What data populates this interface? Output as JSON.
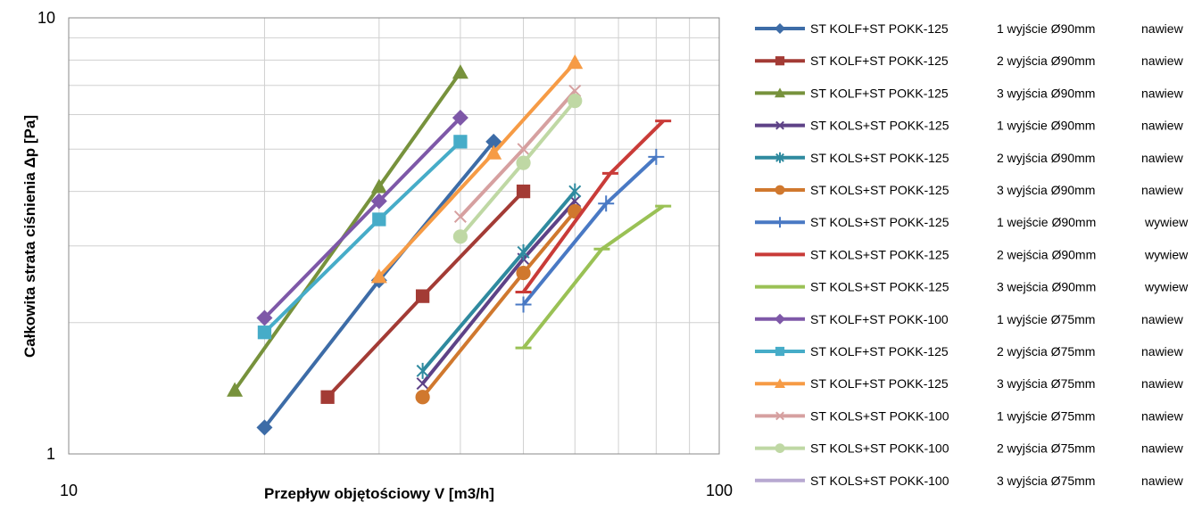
{
  "chart_data": {
    "type": "line",
    "title": "",
    "xlabel": "Przepływ objętościowy  V [m3/h]",
    "ylabel": "Całkowita strata ciśnienia  Δp [Pa]",
    "xscale": "log",
    "yscale": "log",
    "xlim": [
      10,
      100
    ],
    "ylim": [
      1,
      10
    ],
    "x_ticks": [
      "10",
      "100"
    ],
    "y_ticks": [
      "1",
      "10"
    ],
    "grid": true,
    "legend_position": "right",
    "series": [
      {
        "name": "ST KOLF+ST POKK-125",
        "outlet": "1 wyjście Ø90mm",
        "mode": "nawiew",
        "color": "#3d6ca7",
        "marker": "diamond",
        "x": [
          20,
          30,
          45
        ],
        "y": [
          1.15,
          2.5,
          5.2
        ]
      },
      {
        "name": "ST KOLF+ST POKK-125",
        "outlet": "2 wyjścia Ø90mm",
        "mode": "nawiew",
        "color": "#a33b35",
        "marker": "square",
        "x": [
          25,
          35,
          50
        ],
        "y": [
          1.35,
          2.3,
          4.0
        ]
      },
      {
        "name": "ST KOLF+ST POKK-125",
        "outlet": "3 wyjścia Ø90mm",
        "mode": "nawiew",
        "color": "#77923c",
        "marker": "triangle",
        "x": [
          18,
          30,
          40
        ],
        "y": [
          1.4,
          4.1,
          7.5
        ]
      },
      {
        "name": "ST KOLS+ST POKK-125",
        "outlet": "1 wyjście Ø90mm",
        "mode": "nawiew",
        "color": "#5e4287",
        "marker": "x",
        "x": [
          35,
          50,
          60
        ],
        "y": [
          1.45,
          2.8,
          3.8
        ]
      },
      {
        "name": "ST KOLS+ST POKK-125",
        "outlet": "2 wyjścia Ø90mm",
        "mode": "nawiew",
        "color": "#2f8a9f",
        "marker": "star",
        "x": [
          35,
          50,
          60
        ],
        "y": [
          1.55,
          2.9,
          4.0
        ]
      },
      {
        "name": "ST KOLS+ST POKK-125",
        "outlet": "3 wyjścia Ø90mm",
        "mode": "nawiew",
        "color": "#d0782e",
        "marker": "circle",
        "x": [
          35,
          50,
          60
        ],
        "y": [
          1.35,
          2.6,
          3.6
        ]
      },
      {
        "name": "ST KOLS+ST POKK-125",
        "outlet": "1 wejście Ø90mm",
        "mode": "wywiew",
        "color": "#4979c4",
        "marker": "plus",
        "x": [
          50,
          67,
          80
        ],
        "y": [
          2.2,
          3.75,
          4.8
        ]
      },
      {
        "name": "ST KOLS+ST POKK-125",
        "outlet": "2 wejścia Ø90mm",
        "mode": "wywiew",
        "color": "#c93b38",
        "marker": "dash",
        "x": [
          50,
          68,
          82
        ],
        "y": [
          2.35,
          4.4,
          5.8
        ]
      },
      {
        "name": "ST KOLS+ST POKK-125",
        "outlet": "3 wejścia Ø90mm",
        "mode": "wywiew",
        "color": "#9ac155",
        "marker": "dash",
        "x": [
          50,
          66,
          82
        ],
        "y": [
          1.75,
          2.95,
          3.7
        ]
      },
      {
        "name": "ST KOLF+ST POKK-100",
        "outlet": "1 wyjście Ø75mm",
        "mode": "nawiew",
        "color": "#7e58a8",
        "marker": "diamond",
        "x": [
          20,
          30,
          40
        ],
        "y": [
          2.05,
          3.8,
          5.9
        ]
      },
      {
        "name": "ST KOLF+ST POKK-125",
        "outlet": "2 wyjścia Ø75mm",
        "mode": "nawiew",
        "color": "#46acc8",
        "marker": "square",
        "x": [
          20,
          30,
          40
        ],
        "y": [
          1.9,
          3.45,
          5.2
        ]
      },
      {
        "name": "ST KOLF+ST POKK-125",
        "outlet": "3 wyjścia Ø75mm",
        "mode": "nawiew",
        "color": "#f69b45",
        "marker": "triangle",
        "x": [
          30,
          45,
          60
        ],
        "y": [
          2.55,
          4.9,
          7.9
        ]
      },
      {
        "name": "ST KOLS+ST POKK-100",
        "outlet": "1 wyjście Ø75mm",
        "mode": "nawiew",
        "color": "#d6a0a0",
        "marker": "x",
        "x": [
          40,
          50,
          60
        ],
        "y": [
          3.5,
          5.0,
          6.8
        ]
      },
      {
        "name": "ST KOLS+ST POKK-100",
        "outlet": "2 wyjścia Ø75mm",
        "mode": "nawiew",
        "color": "#bfd8a4",
        "marker": "circle",
        "x": [
          40,
          50,
          60
        ],
        "y": [
          3.15,
          4.65,
          6.45
        ]
      },
      {
        "name": "ST KOLS+ST POKK-100",
        "outlet": "3 wyjścia Ø75mm",
        "mode": "nawiew",
        "color": "#b7a8d1",
        "marker": "dash",
        "x": [],
        "y": []
      }
    ]
  }
}
